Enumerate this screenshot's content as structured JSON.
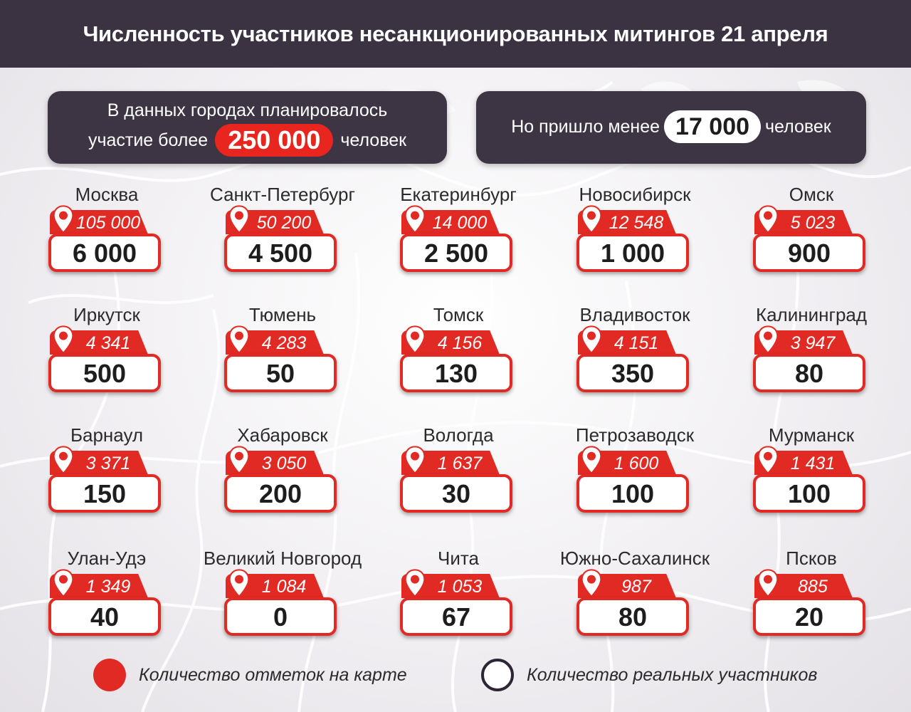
{
  "header": {
    "title": "Численность участников несанкционированных митингов 21 апреля"
  },
  "panel_left": {
    "line1": "В данных городах планировалось",
    "prefix": "участие более",
    "value": "250 000",
    "suffix": "человек"
  },
  "panel_right": {
    "prefix": "Но пришло менее",
    "value": "17 000",
    "suffix": "человек"
  },
  "cities": [
    {
      "name": "Москва",
      "marks": "105 000",
      "real": "6 000"
    },
    {
      "name": "Санкт-Петербург",
      "marks": "50 200",
      "real": "4 500"
    },
    {
      "name": "Екатеринбург",
      "marks": "14 000",
      "real": "2 500"
    },
    {
      "name": "Новосибирск",
      "marks": "12 548",
      "real": "1 000"
    },
    {
      "name": "Омск",
      "marks": "5 023",
      "real": "900"
    },
    {
      "name": "Иркутск",
      "marks": "4 341",
      "real": "500"
    },
    {
      "name": "Тюмень",
      "marks": "4 283",
      "real": "50"
    },
    {
      "name": "Томск",
      "marks": "4 156",
      "real": "130"
    },
    {
      "name": "Владивосток",
      "marks": "4 151",
      "real": "350"
    },
    {
      "name": "Калининград",
      "marks": "3 947",
      "real": "80"
    },
    {
      "name": "Барнаул",
      "marks": "3 371",
      "real": "150"
    },
    {
      "name": "Хабаровск",
      "marks": "3 050",
      "real": "200"
    },
    {
      "name": "Вологда",
      "marks": "1 637",
      "real": "30"
    },
    {
      "name": "Петрозаводск",
      "marks": "1 600",
      "real": "100"
    },
    {
      "name": "Мурманск",
      "marks": "1 431",
      "real": "100"
    },
    {
      "name": "Улан-Удэ",
      "marks": "1 349",
      "real": "40"
    },
    {
      "name": "Великий Новгород",
      "marks": "1 084",
      "real": "0"
    },
    {
      "name": "Чита",
      "marks": "1 053",
      "real": "67"
    },
    {
      "name": "Южно-Сахалинск",
      "marks": "987",
      "real": "80"
    },
    {
      "name": "Псков",
      "marks": "885",
      "real": "20"
    }
  ],
  "legend": {
    "marks_label": "Количество отметок на карте",
    "real_label": "Количество реальных участников"
  },
  "colors": {
    "accent_red": "#e22a24",
    "header_bg": "#3b3242",
    "panel_bg": "#3d3444"
  },
  "icons": {
    "marker": "map-pin-icon"
  }
}
